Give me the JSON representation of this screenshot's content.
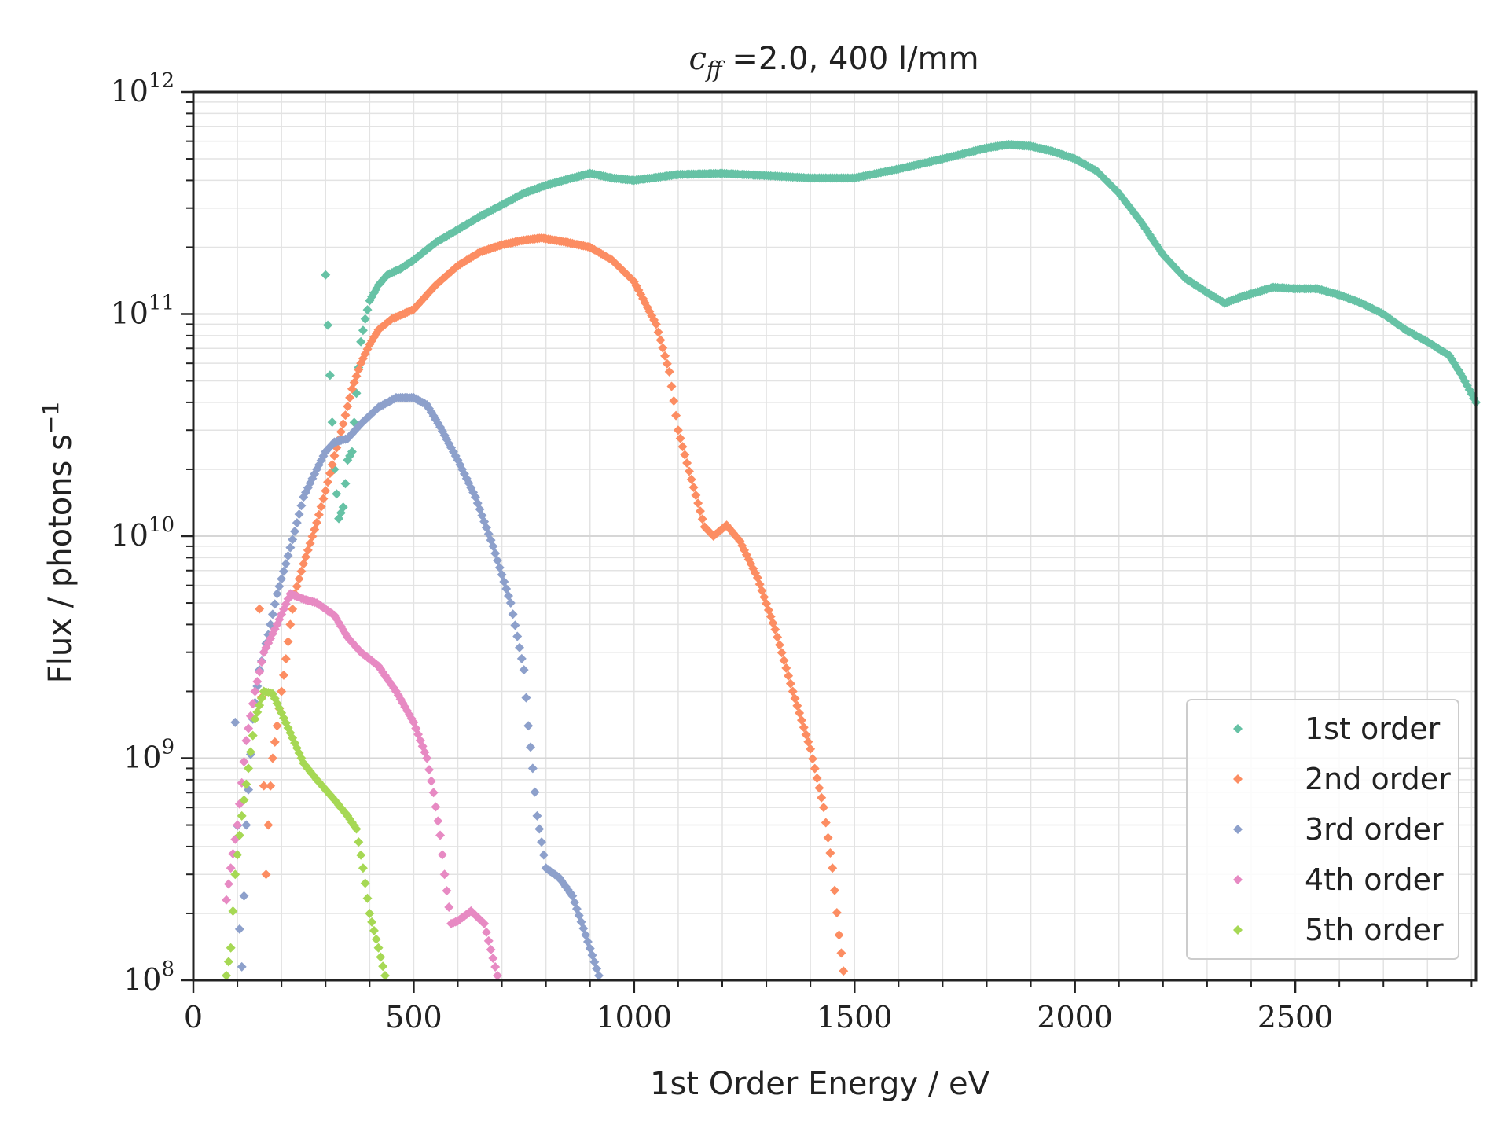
{
  "chart_data": {
    "type": "scatter",
    "title_var": "c",
    "title_sub": "ff",
    "title_rest": " =2.0, 400 l/mm",
    "xlabel": "1st Order Energy / eV",
    "ylabel_main": "Flux / photons s",
    "ylabel_sup": "−1",
    "xlim": [
      0,
      2910
    ],
    "ylim": [
      100000000.0,
      1000000000000.0
    ],
    "yscale": "log",
    "grid": true,
    "legend_position": "lower-right",
    "x_ticks": [
      "0",
      "500",
      "1000",
      "1500",
      "2000",
      "2500"
    ],
    "x_tick_values": [
      0,
      500,
      1000,
      1500,
      2000,
      2500
    ],
    "y_ticks": [
      {
        "base": "10",
        "exp": "8",
        "value": 100000000.0
      },
      {
        "base": "10",
        "exp": "9",
        "value": 1000000000.0
      },
      {
        "base": "10",
        "exp": "10",
        "value": 10000000000.0
      },
      {
        "base": "10",
        "exp": "11",
        "value": 100000000000.0
      },
      {
        "base": "10",
        "exp": "12",
        "value": 1000000000000.0
      }
    ],
    "series": [
      {
        "name": "1st order",
        "color": "#66c2a5",
        "points": [
          [
            300,
            150000000000.0
          ],
          [
            310,
            53000000000.0
          ],
          [
            320,
            20000000000.0
          ],
          [
            330,
            12000000000.0
          ],
          [
            340,
            13500000000.0
          ],
          [
            350,
            22000000000.0
          ],
          [
            360,
            24000000000.0
          ],
          [
            370,
            44000000000.0
          ],
          [
            380,
            75000000000.0
          ],
          [
            390,
            95000000000.0
          ],
          [
            400,
            115000000000.0
          ],
          [
            420,
            135000000000.0
          ],
          [
            440,
            150000000000.0
          ],
          [
            470,
            160000000000.0
          ],
          [
            500,
            175000000000.0
          ],
          [
            550,
            210000000000.0
          ],
          [
            600,
            240000000000.0
          ],
          [
            650,
            275000000000.0
          ],
          [
            700,
            310000000000.0
          ],
          [
            750,
            350000000000.0
          ],
          [
            800,
            380000000000.0
          ],
          [
            850,
            405000000000.0
          ],
          [
            900,
            430000000000.0
          ],
          [
            950,
            410000000000.0
          ],
          [
            1000,
            400000000000.0
          ],
          [
            1100,
            425000000000.0
          ],
          [
            1200,
            430000000000.0
          ],
          [
            1300,
            420000000000.0
          ],
          [
            1400,
            410000000000.0
          ],
          [
            1500,
            410000000000.0
          ],
          [
            1600,
            450000000000.0
          ],
          [
            1700,
            500000000000.0
          ],
          [
            1800,
            560000000000.0
          ],
          [
            1850,
            580000000000.0
          ],
          [
            1900,
            570000000000.0
          ],
          [
            1950,
            540000000000.0
          ],
          [
            2000,
            500000000000.0
          ],
          [
            2050,
            440000000000.0
          ],
          [
            2100,
            350000000000.0
          ],
          [
            2150,
            260000000000.0
          ],
          [
            2200,
            185000000000.0
          ],
          [
            2250,
            145000000000.0
          ],
          [
            2300,
            125000000000.0
          ],
          [
            2340,
            112000000000.0
          ],
          [
            2380,
            120000000000.0
          ],
          [
            2450,
            132000000000.0
          ],
          [
            2500,
            130000000000.0
          ],
          [
            2550,
            130000000000.0
          ],
          [
            2600,
            122000000000.0
          ],
          [
            2650,
            112000000000.0
          ],
          [
            2700,
            100000000000.0
          ],
          [
            2750,
            85000000000.0
          ],
          [
            2800,
            75000000000.0
          ],
          [
            2850,
            65000000000.0
          ],
          [
            2880,
            52000000000.0
          ],
          [
            2910,
            40000000000.0
          ]
        ]
      },
      {
        "name": "2nd order",
        "color": "#fc8d62",
        "points": [
          [
            150,
            4700000000.0
          ],
          [
            165,
            300000000.0
          ],
          [
            170,
            500000000.0
          ],
          [
            175,
            750000000.0
          ],
          [
            180,
            1000000000.0
          ],
          [
            190,
            1400000000.0
          ],
          [
            200,
            2000000000.0
          ],
          [
            210,
            2800000000.0
          ],
          [
            220,
            4000000000.0
          ],
          [
            230,
            5500000000.0
          ],
          [
            250,
            7500000000.0
          ],
          [
            280,
            11500000000.0
          ],
          [
            300,
            16000000000.0
          ],
          [
            320,
            23000000000.0
          ],
          [
            340,
            32000000000.0
          ],
          [
            360,
            46000000000.0
          ],
          [
            380,
            60000000000.0
          ],
          [
            400,
            73000000000.0
          ],
          [
            420,
            85000000000.0
          ],
          [
            450,
            95000000000.0
          ],
          [
            500,
            105000000000.0
          ],
          [
            550,
            135000000000.0
          ],
          [
            600,
            165000000000.0
          ],
          [
            650,
            190000000000.0
          ],
          [
            700,
            205000000000.0
          ],
          [
            750,
            215000000000.0
          ],
          [
            790,
            220000000000.0
          ],
          [
            850,
            210000000000.0
          ],
          [
            900,
            200000000000.0
          ],
          [
            950,
            175000000000.0
          ],
          [
            1000,
            140000000000.0
          ],
          [
            1050,
            90000000000.0
          ],
          [
            1080,
            55000000000.0
          ],
          [
            1100,
            30000000000.0
          ],
          [
            1130,
            18000000000.0
          ],
          [
            1160,
            11000000000.0
          ],
          [
            1180,
            10000000000.0
          ],
          [
            1210,
            11200000000.0
          ],
          [
            1240,
            9500000000.0
          ],
          [
            1280,
            6500000000.0
          ],
          [
            1320,
            3800000000.0
          ],
          [
            1360,
            2000000000.0
          ],
          [
            1400,
            1100000000.0
          ],
          [
            1430,
            600000000.0
          ],
          [
            1450,
            320000000.0
          ],
          [
            1465,
            160000000.0
          ],
          [
            1475,
            110000000.0
          ]
        ]
      },
      {
        "name": "3rd order",
        "color": "#8da0cb",
        "points": [
          [
            95,
            1450000000.0
          ],
          [
            105,
            170000000.0
          ],
          [
            110,
            115000000.0
          ],
          [
            120,
            500000000.0
          ],
          [
            135,
            1500000000.0
          ],
          [
            150,
            2500000000.0
          ],
          [
            170,
            3600000000.0
          ],
          [
            190,
            5500000000.0
          ],
          [
            210,
            7500000000.0
          ],
          [
            230,
            10500000000.0
          ],
          [
            250,
            15000000000.0
          ],
          [
            280,
            20000000000.0
          ],
          [
            300,
            24000000000.0
          ],
          [
            320,
            26500000000.0
          ],
          [
            350,
            27500000000.0
          ],
          [
            380,
            32000000000.0
          ],
          [
            420,
            38000000000.0
          ],
          [
            460,
            42000000000.0
          ],
          [
            500,
            42000000000.0
          ],
          [
            530,
            39000000000.0
          ],
          [
            560,
            31000000000.0
          ],
          [
            600,
            22000000000.0
          ],
          [
            640,
            15000000000.0
          ],
          [
            680,
            9000000000.0
          ],
          [
            720,
            5000000000.0
          ],
          [
            750,
            2500000000.0
          ],
          [
            760,
            1400000000.0
          ],
          [
            770,
            900000000.0
          ],
          [
            780,
            550000000.0
          ],
          [
            800,
            320000000.0
          ],
          [
            830,
            290000000.0
          ],
          [
            860,
            240000000.0
          ],
          [
            890,
            160000000.0
          ],
          [
            920,
            105000000.0
          ]
        ]
      },
      {
        "name": "4th order",
        "color": "#e78ac3",
        "points": [
          [
            75,
            230000000.0
          ],
          [
            85,
            320000000.0
          ],
          [
            100,
            500000000.0
          ],
          [
            120,
            1200000000.0
          ],
          [
            140,
            2000000000.0
          ],
          [
            160,
            3000000000.0
          ],
          [
            190,
            4000000000.0
          ],
          [
            220,
            5500000000.0
          ],
          [
            250,
            5200000000.0
          ],
          [
            280,
            5000000000.0
          ],
          [
            320,
            4400000000.0
          ],
          [
            350,
            3500000000.0
          ],
          [
            380,
            3000000000.0
          ],
          [
            420,
            2600000000.0
          ],
          [
            460,
            2000000000.0
          ],
          [
            500,
            1450000000.0
          ],
          [
            530,
            1000000000.0
          ],
          [
            545,
            700000000.0
          ],
          [
            560,
            450000000.0
          ],
          [
            570,
            300000000.0
          ],
          [
            585,
            180000000.0
          ],
          [
            600,
            185000000.0
          ],
          [
            630,
            205000000.0
          ],
          [
            660,
            180000000.0
          ],
          [
            690,
            105000000.0
          ]
        ]
      },
      {
        "name": "5th order",
        "color": "#a6d854",
        "points": [
          [
            75,
            105000000.0
          ],
          [
            85,
            140000000.0
          ],
          [
            95,
            300000000.0
          ],
          [
            110,
            550000000.0
          ],
          [
            125,
            900000000.0
          ],
          [
            140,
            1500000000.0
          ],
          [
            160,
            2000000000.0
          ],
          [
            180,
            1950000000.0
          ],
          [
            200,
            1600000000.0
          ],
          [
            220,
            1300000000.0
          ],
          [
            250,
            950000000.0
          ],
          [
            280,
            800000000.0
          ],
          [
            320,
            650000000.0
          ],
          [
            350,
            550000000.0
          ],
          [
            370,
            480000000.0
          ],
          [
            385,
            320000000.0
          ],
          [
            400,
            200000000.0
          ],
          [
            420,
            140000000.0
          ],
          [
            435,
            105000000.0
          ]
        ]
      }
    ]
  }
}
